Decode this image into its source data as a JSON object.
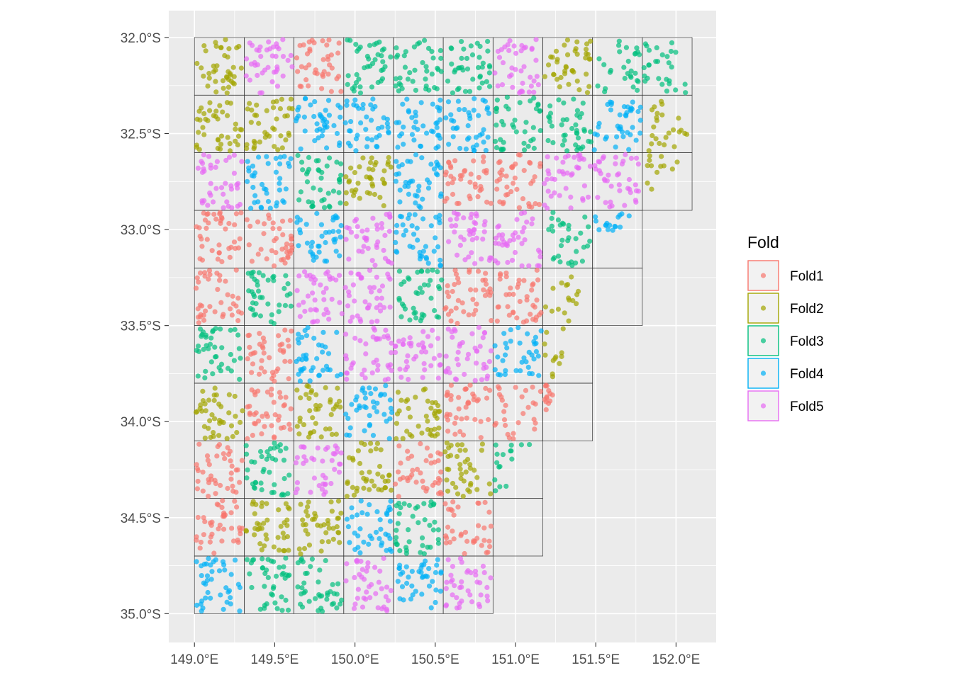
{
  "chart_data": {
    "type": "scatter",
    "title": "",
    "xlabel": "",
    "ylabel": "",
    "x_ticks": [
      {
        "value": 149.0,
        "label": "149.0°E"
      },
      {
        "value": 149.5,
        "label": "149.5°E"
      },
      {
        "value": 150.0,
        "label": "150.0°E"
      },
      {
        "value": 150.5,
        "label": "150.5°E"
      },
      {
        "value": 151.0,
        "label": "151.0°E"
      },
      {
        "value": 151.5,
        "label": "151.5°E"
      },
      {
        "value": 152.0,
        "label": "152.0°E"
      }
    ],
    "y_ticks": [
      {
        "value": -32.0,
        "label": "32.0°S"
      },
      {
        "value": -32.5,
        "label": "32.5°S"
      },
      {
        "value": -33.0,
        "label": "33.0°S"
      },
      {
        "value": -33.5,
        "label": "33.5°S"
      },
      {
        "value": -34.0,
        "label": "34.0°S"
      },
      {
        "value": -34.5,
        "label": "34.5°S"
      },
      {
        "value": -35.0,
        "label": "35.0°S"
      }
    ],
    "xlim": [
      148.84,
      152.25
    ],
    "ylim": [
      -35.15,
      -31.86
    ],
    "grid": true,
    "legend_position": "right",
    "legend": {
      "title": "Fold",
      "items": [
        {
          "name": "Fold1",
          "color": "#F8766D"
        },
        {
          "name": "Fold2",
          "color": "#A3A500"
        },
        {
          "name": "Fold3",
          "color": "#00BF7D"
        },
        {
          "name": "Fold4",
          "color": "#00B0F6"
        },
        {
          "name": "Fold5",
          "color": "#E76BF3"
        }
      ]
    },
    "blocks": {
      "lon0": 149.0,
      "lat0": -32.0,
      "dlon": 0.31,
      "dlat": 0.3,
      "rows": [
        {
          "lat_top": -32.0,
          "folds": [
            2,
            5,
            1,
            3,
            3,
            3,
            5,
            2,
            3,
            3
          ],
          "density": [
            1,
            1,
            1,
            1,
            1,
            1,
            1,
            1,
            0.7,
            0.7
          ]
        },
        {
          "lat_top": -32.3,
          "folds": [
            2,
            2,
            4,
            4,
            4,
            4,
            3,
            3,
            4,
            2
          ],
          "density": [
            1,
            1,
            1,
            1,
            1,
            1,
            1,
            1,
            1,
            0.6
          ]
        },
        {
          "lat_top": -32.6,
          "folds": [
            5,
            4,
            3,
            2,
            4,
            1,
            1,
            5,
            5,
            2
          ],
          "density": [
            1,
            1,
            1,
            1,
            1,
            1,
            1,
            1,
            1,
            0.3
          ]
        },
        {
          "lat_top": -32.9,
          "folds": [
            1,
            1,
            4,
            5,
            4,
            5,
            5,
            3,
            4
          ],
          "density": [
            1,
            1,
            1,
            1,
            1,
            1,
            1,
            0.8,
            0.4
          ]
        },
        {
          "lat_top": -33.2,
          "folds": [
            1,
            3,
            5,
            5,
            3,
            1,
            1,
            2,
            0
          ],
          "density": [
            1,
            1,
            1,
            1,
            1,
            1,
            1,
            0.4,
            0
          ]
        },
        {
          "lat_top": -33.5,
          "folds": [
            3,
            1,
            4,
            5,
            5,
            5,
            4,
            2
          ],
          "density": [
            1,
            1,
            1,
            1,
            1,
            1,
            0.9,
            0.3
          ]
        },
        {
          "lat_top": -33.8,
          "folds": [
            2,
            1,
            2,
            4,
            2,
            1,
            1,
            1
          ],
          "density": [
            1,
            1,
            1,
            1,
            1,
            1,
            0.7,
            0.4
          ]
        },
        {
          "lat_top": -34.1,
          "folds": [
            1,
            3,
            5,
            2,
            1,
            2,
            3
          ],
          "density": [
            1,
            1,
            1,
            1,
            1,
            1,
            0.4
          ]
        },
        {
          "lat_top": -34.4,
          "folds": [
            1,
            2,
            2,
            4,
            3,
            1,
            0
          ],
          "density": [
            1,
            1,
            1,
            1,
            1,
            0.9,
            0
          ]
        },
        {
          "lat_top": -34.7,
          "folds": [
            4,
            3,
            3,
            5,
            4,
            5
          ],
          "density": [
            1,
            1,
            1,
            1,
            1,
            1
          ]
        }
      ]
    },
    "coast": [
      [
        -32.0,
        152.07
      ],
      [
        -32.3,
        152.07
      ],
      [
        -32.6,
        152.07
      ],
      [
        -32.9,
        151.75
      ],
      [
        -33.2,
        151.48
      ],
      [
        -33.5,
        151.32
      ],
      [
        -33.8,
        151.27
      ],
      [
        -34.1,
        151.1
      ],
      [
        -34.4,
        150.9
      ],
      [
        -34.7,
        150.86
      ],
      [
        -35.0,
        150.86
      ]
    ]
  }
}
